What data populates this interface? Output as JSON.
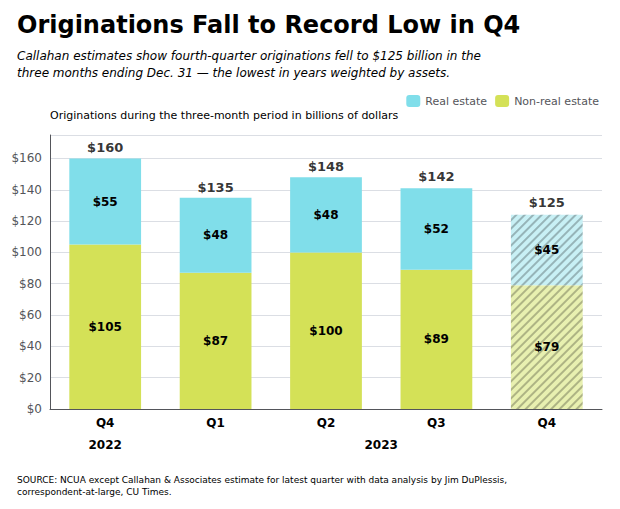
{
  "chart_data": {
    "type": "bar",
    "stacked": true,
    "title": "Originations Fall to Record Low in Q4",
    "subtitle": "Callahan estimates show fourth-quarter originations fell to $125 billion in the\nthree months ending Dec. 31 — the lowest in years weighted by assets.",
    "ylabel": "Originations during the three-month period in billions of dollars",
    "source": "SOURCE: NCUA except Callahan & Associates estimate for latest quarter with data analysis by Jim DuPlessis, correspondent-at-large, CU Times.",
    "categories": [
      "Q4",
      "Q1",
      "Q2",
      "Q3",
      "Q4"
    ],
    "category_groups": [
      "2022",
      "2023",
      "2023",
      "2023",
      "2023"
    ],
    "series": [
      {
        "name": "Non-real estate",
        "color": "#d4e157",
        "colors": [
          "#d4e157",
          "#d4e157",
          "#d4e157",
          "#d4e157",
          "#e8f0b0"
        ],
        "values": [
          105,
          87,
          100,
          89,
          79
        ],
        "value_labels": [
          "$105",
          "$87",
          "$100",
          "$89",
          "$79"
        ]
      },
      {
        "name": "Real estate",
        "color": "#80deea",
        "colors": [
          "#80deea",
          "#80deea",
          "#80deea",
          "#80deea",
          "#c8f0f5"
        ],
        "values": [
          55,
          48,
          48,
          52,
          45
        ],
        "value_labels": [
          "$55",
          "$48",
          "$48",
          "$52",
          "$45"
        ]
      }
    ],
    "totals": [
      160,
      135,
      148,
      142,
      125
    ],
    "total_labels": [
      "$160",
      "$135",
      "$148",
      "$142",
      "$125"
    ],
    "ylim": [
      0,
      175
    ],
    "yticks": [
      {
        "value": 0,
        "label": "$0"
      },
      {
        "value": 20,
        "label": "$20"
      },
      {
        "value": 40,
        "label": "$40"
      },
      {
        "value": 60,
        "label": "$60"
      },
      {
        "value": 80,
        "label": "$80"
      },
      {
        "value": 100,
        "label": "$100"
      },
      {
        "value": 120,
        "label": "$120"
      },
      {
        "value": 140,
        "label": "$140"
      },
      {
        "value": 160,
        "label": "$160"
      }
    ],
    "grid": true,
    "legend": "upper right",
    "data_labels": true
  }
}
